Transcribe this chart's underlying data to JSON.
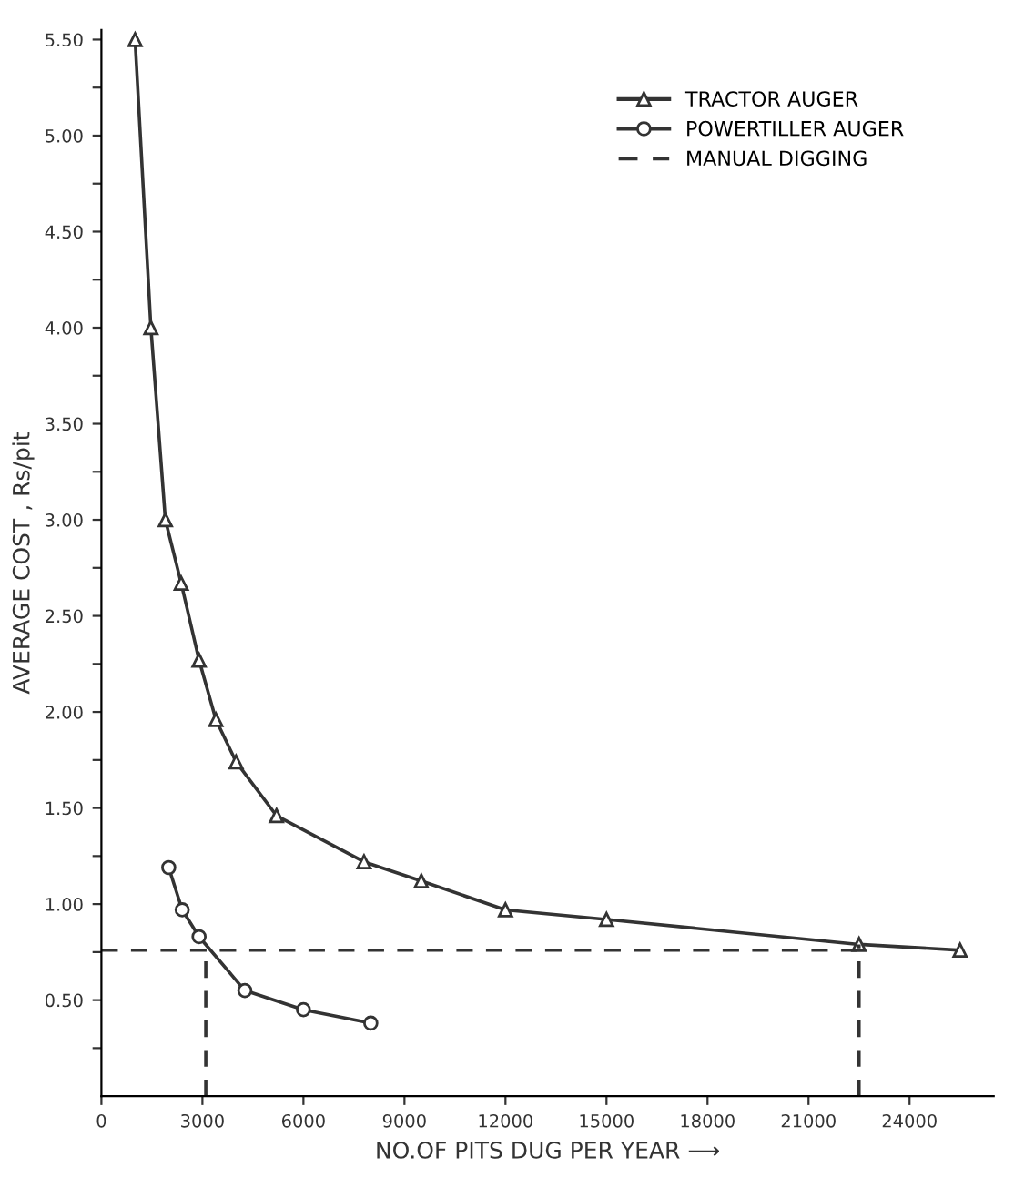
{
  "chart_data": {
    "type": "line",
    "xlabel": "NO.OF PITS DUG PER YEAR ⟶",
    "ylabel": "AVERAGE COST , Rs/pit",
    "xlim": [
      0,
      26500
    ],
    "xticks": [
      0,
      3000,
      6000,
      9000,
      12000,
      15000,
      18000,
      21000,
      24000
    ],
    "ylim": [
      0,
      5.55
    ],
    "yticks": [
      {
        "value": 0.25,
        "label": null
      },
      {
        "value": 0.5,
        "label": "0.50"
      },
      {
        "value": 0.75,
        "label": null
      },
      {
        "value": 1.0,
        "label": "1.00"
      },
      {
        "value": 1.25,
        "label": null
      },
      {
        "value": 1.5,
        "label": "1.50"
      },
      {
        "value": 1.75,
        "label": null
      },
      {
        "value": 2.0,
        "label": "2.00"
      },
      {
        "value": 2.25,
        "label": null
      },
      {
        "value": 2.5,
        "label": "2.50"
      },
      {
        "value": 2.75,
        "label": null
      },
      {
        "value": 3.0,
        "label": "3.00"
      },
      {
        "value": 3.25,
        "label": null
      },
      {
        "value": 3.5,
        "label": "3.50"
      },
      {
        "value": 3.75,
        "label": null
      },
      {
        "value": 4.0,
        "label": "4.00"
      },
      {
        "value": 4.25,
        "label": null
      },
      {
        "value": 4.5,
        "label": "4.50"
      },
      {
        "value": 4.75,
        "label": null
      },
      {
        "value": 5.0,
        "label": "5.00"
      },
      {
        "value": 5.25,
        "label": null
      },
      {
        "value": 5.5,
        "label": "5.50"
      }
    ],
    "grid": false,
    "legend": "top right",
    "series": [
      {
        "name": "TRACTOR AUGER",
        "color": "#333333",
        "marker": "triangle",
        "line_style": "solid",
        "x": [
          1000,
          1470,
          1900,
          2370,
          2900,
          3400,
          4000,
          5200,
          7800,
          9500,
          12000,
          15000,
          22500,
          25500
        ],
        "values": [
          5.5,
          4.0,
          3.0,
          2.67,
          2.27,
          1.96,
          1.74,
          1.46,
          1.22,
          1.12,
          0.97,
          0.92,
          0.79,
          0.76
        ]
      },
      {
        "name": "POWERTILLER AUGER",
        "color": "#333333",
        "marker": "circle",
        "line_style": "solid",
        "x": [
          2000,
          2400,
          2900,
          4260,
          6000,
          8000
        ],
        "values": [
          1.19,
          0.97,
          0.83,
          0.55,
          0.45,
          0.38
        ]
      },
      {
        "name": "MANUAL DIGGING",
        "color": "#333333",
        "marker": "none",
        "line_style": "dashed",
        "x": [
          0,
          22500
        ],
        "values": [
          0.76,
          0.76
        ]
      },
      {
        "color": "#333333",
        "marker": "none",
        "line_style": "dashed",
        "x": [
          3100,
          3100
        ],
        "values": [
          0,
          0.76
        ]
      },
      {
        "color": "#333333",
        "marker": "none",
        "line_style": "dashed",
        "x": [
          22500,
          22500
        ],
        "values": [
          0,
          0.79
        ]
      }
    ]
  }
}
